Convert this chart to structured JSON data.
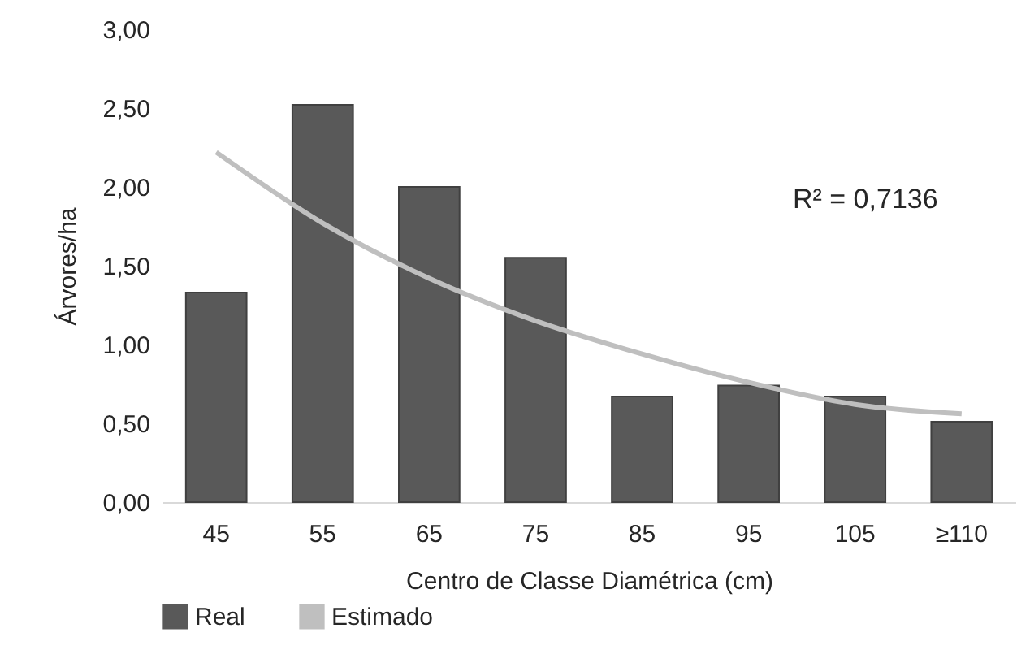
{
  "chart_data": {
    "type": "bar",
    "xlabel": "Centro de Classe Diamétrica (cm)",
    "ylabel": "Árvores/ha",
    "categories": [
      "45",
      "55",
      "65",
      "75",
      "85",
      "95",
      "105",
      "≥110"
    ],
    "series": [
      {
        "name": "Real",
        "color": "#595959",
        "values": [
          1.33,
          2.52,
          2.0,
          1.55,
          0.67,
          0.74,
          0.67,
          0.51
        ]
      },
      {
        "name": "Estimado",
        "type": "line",
        "color": "#bfbfbf",
        "values": [
          2.22,
          1.77,
          1.42,
          1.15,
          0.94,
          0.76,
          0.62,
          0.56
        ]
      }
    ],
    "ylim": [
      0,
      3
    ],
    "yticks": [
      {
        "value": 0,
        "label": "0,00"
      },
      {
        "value": 0.5,
        "label": "0,50"
      },
      {
        "value": 1,
        "label": "1,00"
      },
      {
        "value": 1.5,
        "label": "1,50"
      },
      {
        "value": 2,
        "label": "2,00"
      },
      {
        "value": 2.5,
        "label": "2,50"
      },
      {
        "value": 3,
        "label": "3,00"
      }
    ],
    "annotations": [
      "R² = 0,7136"
    ],
    "legend": "bottom",
    "grid": false
  }
}
